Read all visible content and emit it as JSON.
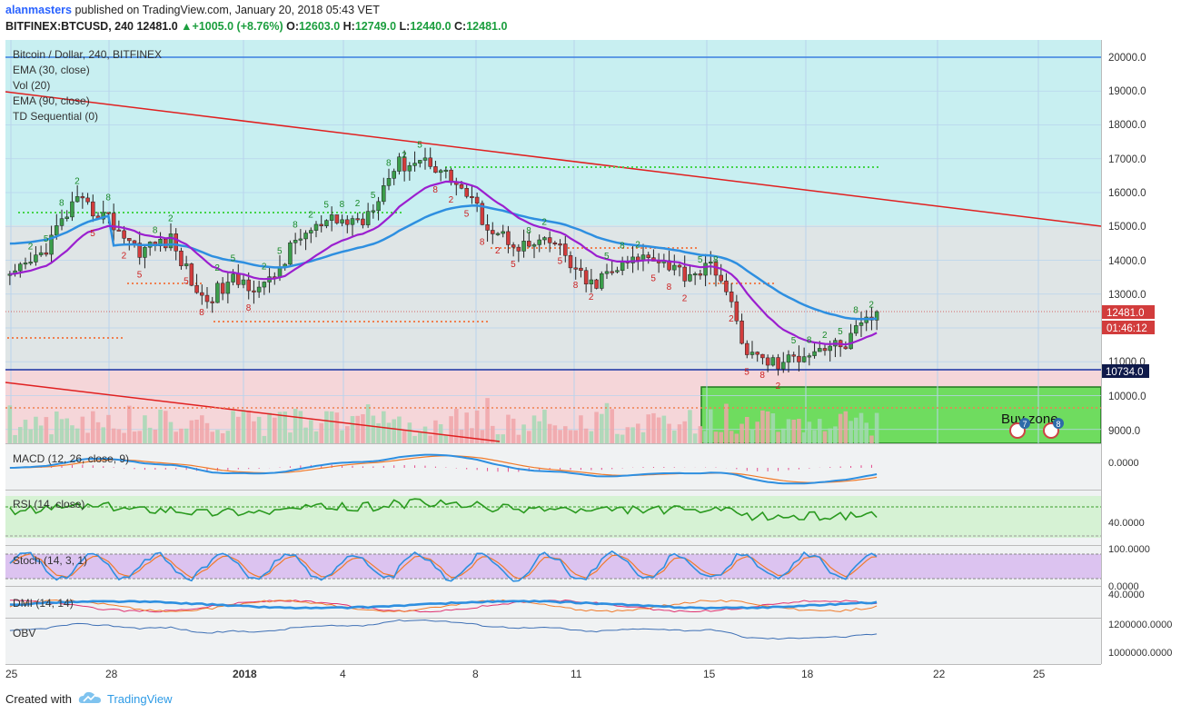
{
  "header": {
    "author": "alanmasters",
    "published_text": "published on TradingView.com, January 20, 2018 05:43 VET",
    "symbol": "BITFINEX:BTCUSD, 240",
    "last_price": "12481.0",
    "change": "+1005.0 (+8.76%)",
    "o_label": "O:",
    "o_value": "12603.0",
    "h_label": "H:",
    "h_value": "12749.0",
    "l_label": "L:",
    "l_value": "12440.0",
    "c_label": "C:",
    "c_value": "12481.0"
  },
  "footer": {
    "created_with": "Created with",
    "brand": "TradingView"
  },
  "colors": {
    "bull": "#3a9d4a",
    "bear": "#d23c3c",
    "ema30": "#9b1fcf",
    "ema90": "#2e8fe0",
    "trend": "#e02020",
    "zone_top": "#c6eff0",
    "zone_buy": "#6fdc5f",
    "macd": "#2e8fe0",
    "signal": "#f07a2a",
    "rsi": "#2a9a1f",
    "stoch_k": "#2e8fe0",
    "stoch_d": "#f07a2a",
    "dmi_adx": "#2e8fe0",
    "dmi_plus": "#f07a2a",
    "dmi_minus": "#e0306f",
    "obv": "#3d6fb5"
  },
  "chart_data": [
    {
      "type": "candlestick",
      "title": "Bitcoin / Dollar, 240, BITFINEX",
      "indicators": [
        "EMA (30, close)",
        "Vol (20)",
        "EMA (90, close)",
        "TD Sequential (0)"
      ],
      "x_ticks": [
        "25",
        "28",
        "2018",
        "4",
        "8",
        "11",
        "15",
        "18",
        "22",
        "25"
      ],
      "y_ticks": [
        "20000.0",
        "19000.0",
        "18000.0",
        "17000.0",
        "16000.0",
        "15000.0",
        "14000.0",
        "13000.0",
        "11000.0",
        "10000.0",
        "9000.0"
      ],
      "y_range": [
        8600,
        21200
      ],
      "price_label": "12481.0",
      "countdown_label": "01:46:12",
      "support_label": "10734.0",
      "annotation": "Buy zone",
      "event_badges": [
        "7",
        "8"
      ],
      "resistance_line": 20000,
      "support_line": 10734,
      "close_path": [
        {
          "d": "Dec 24",
          "p": 13400
        },
        {
          "d": "Dec 25",
          "p": 14200
        },
        {
          "d": "Dec 26",
          "p": 15700
        },
        {
          "d": "Dec 27",
          "p": 15300
        },
        {
          "d": "Dec 28",
          "p": 14300
        },
        {
          "d": "Dec 29",
          "p": 14600
        },
        {
          "d": "Dec 30",
          "p": 12800
        },
        {
          "d": "Dec 31",
          "p": 13400
        },
        {
          "d": "Jan 1",
          "p": 13200
        },
        {
          "d": "Jan 2",
          "p": 14700
        },
        {
          "d": "Jan 3",
          "p": 15100
        },
        {
          "d": "Jan 4",
          "p": 15200
        },
        {
          "d": "Jan 5",
          "p": 16800
        },
        {
          "d": "Jan 6",
          "p": 17000
        },
        {
          "d": "Jan 7",
          "p": 16200
        },
        {
          "d": "Jan 8",
          "p": 14900
        },
        {
          "d": "Jan 9",
          "p": 14400
        },
        {
          "d": "Jan 10",
          "p": 14500
        },
        {
          "d": "Jan 11",
          "p": 13200
        },
        {
          "d": "Jan 12",
          "p": 13800
        },
        {
          "d": "Jan 13",
          "p": 14200
        },
        {
          "d": "Jan 14",
          "p": 13600
        },
        {
          "d": "Jan 15",
          "p": 13800
        },
        {
          "d": "Jan 16",
          "p": 11200
        },
        {
          "d": "Jan 17",
          "p": 10900
        },
        {
          "d": "Jan 18",
          "p": 11400
        },
        {
          "d": "Jan 19",
          "p": 11500
        },
        {
          "d": "Jan 20",
          "p": 12481
        }
      ]
    },
    {
      "type": "line",
      "title": "MACD (12, 26, close, 9)",
      "y_ticks": [
        "0.0000"
      ]
    },
    {
      "type": "line",
      "title": "RSI (14, close)",
      "y_ticks": [
        "40.0000"
      ]
    },
    {
      "type": "line",
      "title": "Stoch (14, 3, 1)",
      "y_ticks": [
        "100.0000",
        "0.0000"
      ]
    },
    {
      "type": "line",
      "title": "DMI (14, 14)",
      "y_ticks": [
        "40.0000"
      ]
    },
    {
      "type": "line",
      "title": "OBV",
      "y_ticks": [
        "1200000.0000",
        "1000000.0000"
      ]
    }
  ]
}
